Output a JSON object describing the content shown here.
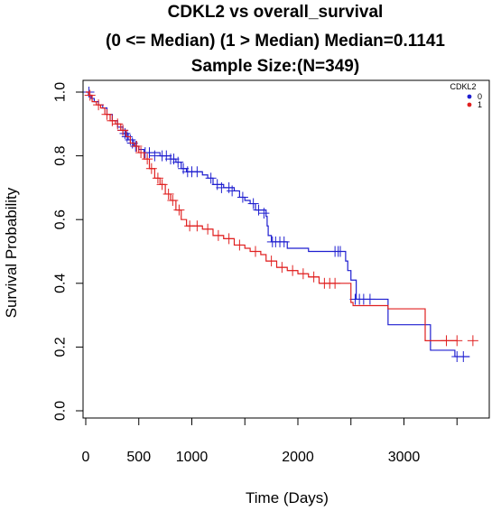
{
  "chart_data": {
    "type": "line",
    "title_lines": [
      "CDKL2 vs overall_survival",
      "(0 <= Median) (1 > Median) Median=0.1141",
      "Sample Size:(N=349)"
    ],
    "xlabel": "Time (Days)",
    "ylabel": "Survival Probability",
    "xlim": [
      0,
      3800
    ],
    "ylim": [
      0,
      1.0
    ],
    "x_ticks": [
      0,
      500,
      1000,
      2000,
      3000
    ],
    "x_tick_positions": [
      0,
      500,
      1000,
      1500,
      2000,
      2500,
      3000,
      3500
    ],
    "y_ticks": [
      0.0,
      0.2,
      0.4,
      0.6,
      0.8,
      1.0
    ],
    "y_tick_labels": [
      "0.0",
      "0.2",
      "0.4",
      "0.6",
      "0.8",
      "1.0"
    ],
    "legend": {
      "title": "CDKL2",
      "placement": "top-right"
    },
    "colors": {
      "0": "#1f1fd0",
      "1": "#e02020"
    },
    "series": [
      {
        "name": "0",
        "steps": [
          [
            0,
            1.0
          ],
          [
            25,
            0.99
          ],
          [
            50,
            0.98
          ],
          [
            80,
            0.97
          ],
          [
            120,
            0.96
          ],
          [
            160,
            0.95
          ],
          [
            200,
            0.93
          ],
          [
            250,
            0.91
          ],
          [
            300,
            0.89
          ],
          [
            350,
            0.87
          ],
          [
            400,
            0.85
          ],
          [
            450,
            0.83
          ],
          [
            500,
            0.82
          ],
          [
            550,
            0.81
          ],
          [
            700,
            0.8
          ],
          [
            800,
            0.79
          ],
          [
            850,
            0.78
          ],
          [
            900,
            0.76
          ],
          [
            950,
            0.75
          ],
          [
            1100,
            0.74
          ],
          [
            1150,
            0.73
          ],
          [
            1200,
            0.71
          ],
          [
            1300,
            0.7
          ],
          [
            1400,
            0.69
          ],
          [
            1450,
            0.67
          ],
          [
            1500,
            0.66
          ],
          [
            1550,
            0.65
          ],
          [
            1600,
            0.63
          ],
          [
            1700,
            0.61
          ],
          [
            1710,
            0.58
          ],
          [
            1720,
            0.55
          ],
          [
            1750,
            0.53
          ],
          [
            1900,
            0.51
          ],
          [
            2100,
            0.5
          ],
          [
            2420,
            0.5
          ],
          [
            2450,
            0.47
          ],
          [
            2470,
            0.44
          ],
          [
            2500,
            0.41
          ],
          [
            2550,
            0.35
          ],
          [
            2800,
            0.35
          ],
          [
            2850,
            0.27
          ],
          [
            3200,
            0.27
          ],
          [
            3250,
            0.19
          ],
          [
            3450,
            0.19
          ],
          [
            3480,
            0.17
          ],
          [
            3620,
            0.17
          ]
        ],
        "censored": [
          [
            30,
            1.0
          ],
          [
            350,
            0.88
          ],
          [
            370,
            0.87
          ],
          [
            390,
            0.86
          ],
          [
            420,
            0.85
          ],
          [
            440,
            0.84
          ],
          [
            470,
            0.83
          ],
          [
            560,
            0.81
          ],
          [
            600,
            0.81
          ],
          [
            650,
            0.8
          ],
          [
            720,
            0.8
          ],
          [
            760,
            0.8
          ],
          [
            800,
            0.79
          ],
          [
            830,
            0.79
          ],
          [
            870,
            0.78
          ],
          [
            920,
            0.76
          ],
          [
            960,
            0.75
          ],
          [
            1000,
            0.75
          ],
          [
            1050,
            0.75
          ],
          [
            1180,
            0.73
          ],
          [
            1240,
            0.71
          ],
          [
            1280,
            0.7
          ],
          [
            1350,
            0.7
          ],
          [
            1380,
            0.69
          ],
          [
            1480,
            0.67
          ],
          [
            1580,
            0.65
          ],
          [
            1630,
            0.63
          ],
          [
            1680,
            0.62
          ],
          [
            1760,
            0.53
          ],
          [
            1790,
            0.53
          ],
          [
            1830,
            0.53
          ],
          [
            1870,
            0.53
          ],
          [
            2350,
            0.5
          ],
          [
            2380,
            0.5
          ],
          [
            2400,
            0.5
          ],
          [
            2540,
            0.35
          ],
          [
            2580,
            0.35
          ],
          [
            2620,
            0.35
          ],
          [
            2680,
            0.35
          ],
          [
            3500,
            0.17
          ],
          [
            3560,
            0.17
          ]
        ]
      },
      {
        "name": "1",
        "steps": [
          [
            0,
            1.0
          ],
          [
            30,
            0.99
          ],
          [
            60,
            0.97
          ],
          [
            100,
            0.96
          ],
          [
            140,
            0.95
          ],
          [
            180,
            0.93
          ],
          [
            230,
            0.91
          ],
          [
            280,
            0.9
          ],
          [
            330,
            0.88
          ],
          [
            380,
            0.86
          ],
          [
            420,
            0.84
          ],
          [
            460,
            0.83
          ],
          [
            500,
            0.81
          ],
          [
            550,
            0.79
          ],
          [
            600,
            0.76
          ],
          [
            650,
            0.73
          ],
          [
            700,
            0.71
          ],
          [
            750,
            0.68
          ],
          [
            800,
            0.66
          ],
          [
            850,
            0.63
          ],
          [
            900,
            0.6
          ],
          [
            950,
            0.58
          ],
          [
            1100,
            0.57
          ],
          [
            1200,
            0.55
          ],
          [
            1300,
            0.54
          ],
          [
            1400,
            0.52
          ],
          [
            1500,
            0.51
          ],
          [
            1550,
            0.5
          ],
          [
            1650,
            0.49
          ],
          [
            1700,
            0.47
          ],
          [
            1800,
            0.45
          ],
          [
            1900,
            0.44
          ],
          [
            2000,
            0.43
          ],
          [
            2100,
            0.42
          ],
          [
            2200,
            0.4
          ],
          [
            2450,
            0.4
          ],
          [
            2500,
            0.34
          ],
          [
            2520,
            0.33
          ],
          [
            2850,
            0.32
          ],
          [
            3200,
            0.22
          ],
          [
            3500,
            0.22
          ]
        ],
        "censored": [
          [
            40,
            0.99
          ],
          [
            120,
            0.96
          ],
          [
            200,
            0.93
          ],
          [
            250,
            0.91
          ],
          [
            300,
            0.9
          ],
          [
            350,
            0.88
          ],
          [
            480,
            0.83
          ],
          [
            520,
            0.81
          ],
          [
            580,
            0.79
          ],
          [
            620,
            0.76
          ],
          [
            680,
            0.73
          ],
          [
            720,
            0.71
          ],
          [
            780,
            0.68
          ],
          [
            820,
            0.66
          ],
          [
            880,
            0.63
          ],
          [
            980,
            0.58
          ],
          [
            1050,
            0.58
          ],
          [
            1150,
            0.57
          ],
          [
            1250,
            0.55
          ],
          [
            1350,
            0.54
          ],
          [
            1450,
            0.52
          ],
          [
            1600,
            0.5
          ],
          [
            1750,
            0.47
          ],
          [
            1850,
            0.45
          ],
          [
            1950,
            0.44
          ],
          [
            2050,
            0.43
          ],
          [
            2150,
            0.42
          ],
          [
            2250,
            0.4
          ],
          [
            2300,
            0.4
          ],
          [
            2350,
            0.4
          ],
          [
            3400,
            0.22
          ],
          [
            3500,
            0.22
          ],
          [
            3650,
            0.22
          ]
        ]
      }
    ]
  }
}
